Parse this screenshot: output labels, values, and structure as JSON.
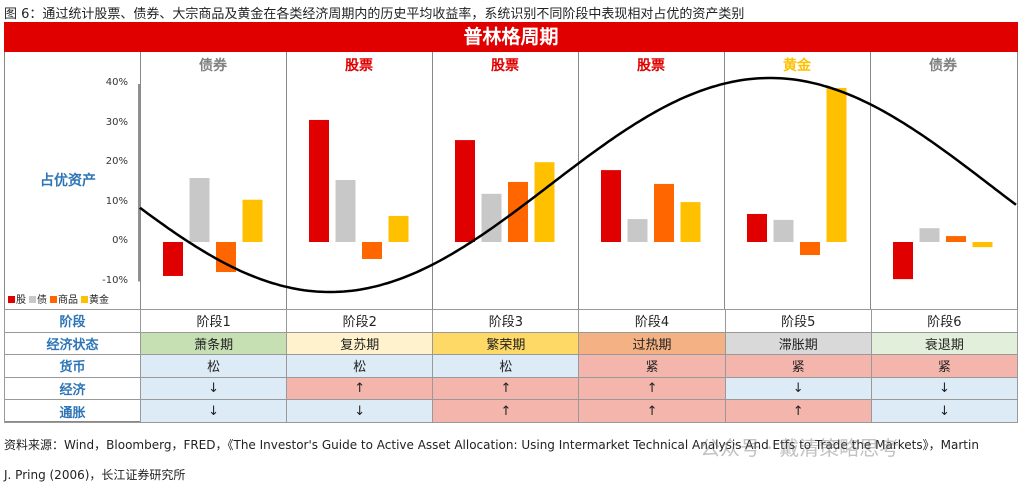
{
  "caption": "图 6：通过统计股票、债券、大宗商品及黄金在各类经济周期内的历史平均收益率，系统识别不同阶段中表现相对占优的资产类别",
  "banner": "普林格周期",
  "y_label": "占优资产",
  "colors": {
    "stock": "#e00000",
    "bond": "#c8c8c8",
    "commodity": "#ff6600",
    "gold": "#ffc000",
    "banner": "#e00000",
    "label_blue": "#2e75b6"
  },
  "chart_data": {
    "type": "bar",
    "categories": [
      "阶段1",
      "阶段2",
      "阶段3",
      "阶段4",
      "阶段5",
      "阶段6"
    ],
    "dominant_assets": [
      {
        "label": "债券",
        "color": "#808080"
      },
      {
        "label": "股票",
        "color": "#e00000"
      },
      {
        "label": "股票",
        "color": "#e00000"
      },
      {
        "label": "股票",
        "color": "#e00000"
      },
      {
        "label": "黄金",
        "color": "#ffc000"
      },
      {
        "label": "债券",
        "color": "#808080"
      }
    ],
    "series": [
      {
        "name": "股",
        "values": [
          -8.6,
          30.9,
          25.8,
          18.2,
          7.1,
          -9.4
        ]
      },
      {
        "name": "债",
        "values": [
          16.2,
          15.7,
          12.2,
          5.8,
          5.6,
          3.5
        ]
      },
      {
        "name": "商品",
        "values": [
          -7.6,
          -4.3,
          15.2,
          14.7,
          -3.3,
          1.5
        ]
      },
      {
        "name": "黄金",
        "values": [
          10.7,
          6.6,
          20.2,
          10.1,
          39.0,
          -1.3
        ]
      }
    ],
    "yticks": [
      "40%",
      "30%",
      "20%",
      "10%",
      "0%",
      "-10%"
    ],
    "ylim": [
      -10,
      40
    ],
    "legend": "bottom-left",
    "overlay": "sine-wave business cycle curve"
  },
  "table": {
    "rows": [
      {
        "header": "阶段",
        "cells": [
          "阶段1",
          "阶段2",
          "阶段3",
          "阶段4",
          "阶段5",
          "阶段6"
        ],
        "bg": [
          "#fff",
          "#fff",
          "#fff",
          "#fff",
          "#fff",
          "#fff"
        ]
      },
      {
        "header": "经济状态",
        "cells": [
          "萧条期",
          "复苏期",
          "繁荣期",
          "过热期",
          "滞胀期",
          "衰退期"
        ],
        "bg": [
          "#c6e0b4",
          "#fff2cc",
          "#ffd966",
          "#f4b183",
          "#d9d9d9",
          "#e2efda"
        ]
      },
      {
        "header": "货币",
        "cells": [
          "松",
          "松",
          "松",
          "紧",
          "紧",
          "紧"
        ],
        "bg": [
          "#ddebf7",
          "#ddebf7",
          "#ddebf7",
          "#f4b6ac",
          "#f4b6ac",
          "#f4b6ac"
        ]
      },
      {
        "header": "经济",
        "cells": [
          "↓",
          "↑",
          "↑",
          "↑",
          "↓",
          "↓"
        ],
        "bg": [
          "#ddebf7",
          "#f4b6ac",
          "#f4b6ac",
          "#f4b6ac",
          "#ddebf7",
          "#ddebf7"
        ]
      },
      {
        "header": "通胀",
        "cells": [
          "↓",
          "↓",
          "↑",
          "↑",
          "↑",
          "↓"
        ],
        "bg": [
          "#ddebf7",
          "#ddebf7",
          "#f4b6ac",
          "#f4b6ac",
          "#f4b6ac",
          "#ddebf7"
        ]
      }
    ]
  },
  "footer": {
    "line1": "资料来源：Wind，Bloomberg，FRED，《The Investor's Guide to Active Asset Allocation: Using Intermarket Technical Analysis And Etfs to Trade the Markets》，Martin",
    "line2": "J. Pring (2006)，长江证券研究所",
    "watermark": "公众号 · 戴清策略思考"
  }
}
